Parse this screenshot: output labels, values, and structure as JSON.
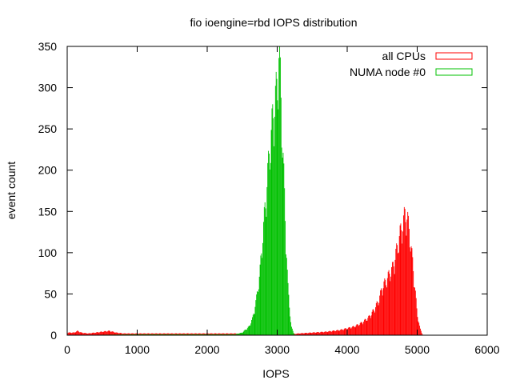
{
  "chart_data": {
    "type": "bar",
    "title": "fio ioengine=rbd IOPS distribution",
    "xlabel": "IOPS",
    "ylabel": "event count",
    "xlim": [
      0,
      6000
    ],
    "ylim": [
      0,
      350
    ],
    "x_ticks": [
      0,
      1000,
      2000,
      3000,
      4000,
      5000,
      6000
    ],
    "y_ticks": [
      0,
      50,
      100,
      150,
      200,
      250,
      300,
      350
    ],
    "grid": false,
    "legend_position": "top-right",
    "bin_width": 10,
    "series": [
      {
        "name": "all CPUs",
        "color": "#ff0000",
        "points": [
          [
            0,
            3
          ],
          [
            100,
            3
          ],
          [
            150,
            5
          ],
          [
            200,
            3
          ],
          [
            300,
            2
          ],
          [
            400,
            3
          ],
          [
            500,
            4
          ],
          [
            600,
            5
          ],
          [
            700,
            3
          ],
          [
            800,
            2
          ],
          [
            900,
            2
          ],
          [
            1000,
            2
          ],
          [
            1200,
            2
          ],
          [
            1500,
            2
          ],
          [
            1800,
            2
          ],
          [
            2000,
            2
          ],
          [
            2200,
            2
          ],
          [
            2400,
            2
          ],
          [
            2600,
            1
          ],
          [
            3000,
            0
          ],
          [
            3200,
            1
          ],
          [
            3300,
            2
          ],
          [
            3500,
            3
          ],
          [
            3700,
            4
          ],
          [
            3800,
            5
          ],
          [
            3900,
            6
          ],
          [
            4000,
            8
          ],
          [
            4100,
            10
          ],
          [
            4200,
            14
          ],
          [
            4300,
            20
          ],
          [
            4350,
            25
          ],
          [
            4400,
            32
          ],
          [
            4450,
            40
          ],
          [
            4500,
            55
          ],
          [
            4550,
            62
          ],
          [
            4600,
            70
          ],
          [
            4650,
            78
          ],
          [
            4700,
            95
          ],
          [
            4750,
            115
          ],
          [
            4800,
            130
          ],
          [
            4830,
            140
          ],
          [
            4860,
            135
          ],
          [
            4900,
            112
          ],
          [
            4950,
            72
          ],
          [
            5000,
            25
          ],
          [
            5040,
            8
          ],
          [
            5080,
            0
          ]
        ]
      },
      {
        "name": "NUMA node #0",
        "color": "#00c000",
        "points": [
          [
            0,
            0
          ],
          [
            1000,
            1
          ],
          [
            1400,
            1
          ],
          [
            1800,
            1
          ],
          [
            2200,
            1
          ],
          [
            2400,
            1
          ],
          [
            2500,
            3
          ],
          [
            2600,
            10
          ],
          [
            2650,
            20
          ],
          [
            2700,
            40
          ],
          [
            2750,
            70
          ],
          [
            2800,
            120
          ],
          [
            2850,
            170
          ],
          [
            2900,
            220
          ],
          [
            2950,
            260
          ],
          [
            3000,
            285
          ],
          [
            3030,
            330
          ],
          [
            3060,
            260
          ],
          [
            3100,
            170
          ],
          [
            3150,
            60
          ],
          [
            3200,
            10
          ],
          [
            3250,
            0
          ]
        ]
      }
    ]
  }
}
